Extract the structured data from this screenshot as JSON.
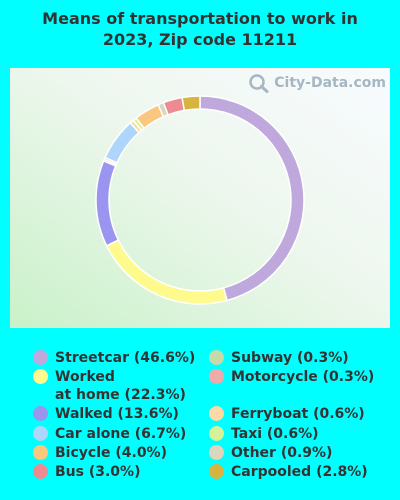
{
  "title_line1": "Means of transportation to work in",
  "title_line2": "2023, Zip code 11211",
  "watermark": "City-Data.com",
  "chart_data": {
    "type": "pie",
    "donut": true,
    "title": "Means of transportation to work in 2023, Zip code 11211",
    "legend_placement": "bottom",
    "slices": [
      {
        "label": "Streetcar",
        "value": 46.6,
        "color": "#BFA8DC"
      },
      {
        "label": "Worked at home",
        "value": 22.3,
        "color": "#FFFA8E"
      },
      {
        "label": "Walked",
        "value": 13.6,
        "color": "#9A95EE"
      },
      {
        "label": "Subway",
        "value": 0.3,
        "color": "#C6D9A8"
      },
      {
        "label": "Motorcycle",
        "value": 0.3,
        "color": "#EFAAAA"
      },
      {
        "label": "Car alone",
        "value": 6.7,
        "color": "#AED6FA"
      },
      {
        "label": "Ferryboat",
        "value": 0.6,
        "color": "#FDD9A6"
      },
      {
        "label": "Taxi",
        "value": 0.6,
        "color": "#D6F299"
      },
      {
        "label": "Bicycle",
        "value": 4.0,
        "color": "#FAC77F"
      },
      {
        "label": "Other",
        "value": 0.9,
        "color": "#DCD6BC"
      },
      {
        "label": "Bus",
        "value": 3.0,
        "color": "#EC8C92"
      },
      {
        "label": "Carpooled",
        "value": 2.8,
        "color": "#D6B43F"
      }
    ]
  },
  "legend": [
    {
      "name": "legend-streetcar",
      "text": "Streetcar (46.6%)",
      "color": "#BFA8DC"
    },
    {
      "name": "legend-worked-at-home",
      "text1": "Worked",
      "text2": "at home (22.3%)",
      "color": "#FFFA8E"
    },
    {
      "name": "legend-walked",
      "text": "Walked (13.6%)",
      "color": "#9A95EE"
    },
    {
      "name": "legend-car-alone",
      "text": "Car alone (6.7%)",
      "color": "#AED6FA"
    },
    {
      "name": "legend-bicycle",
      "text": "Bicycle (4.0%)",
      "color": "#FAC77F"
    },
    {
      "name": "legend-bus",
      "text": "Bus (3.0%)",
      "color": "#EC8C92"
    },
    {
      "name": "legend-subway",
      "text": "Subway (0.3%)",
      "color": "#C6D9A8"
    },
    {
      "name": "legend-motorcycle",
      "text": "Motorcycle (0.3%)",
      "color": "#EFAAAA"
    },
    {
      "name": "legend-ferryboat",
      "text": "Ferryboat (0.6%)",
      "color": "#FDD9A6"
    },
    {
      "name": "legend-taxi",
      "text": "Taxi (0.6%)",
      "color": "#D6F299"
    },
    {
      "name": "legend-other",
      "text": "Other (0.9%)",
      "color": "#DCD6BC"
    },
    {
      "name": "legend-carpooled",
      "text": "Carpooled (2.8%)",
      "color": "#D6B43F"
    }
  ]
}
